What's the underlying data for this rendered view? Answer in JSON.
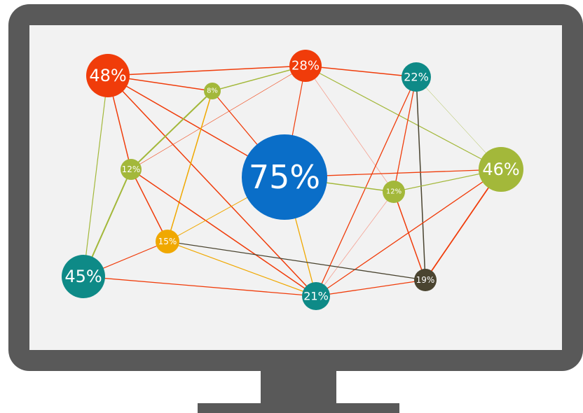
{
  "nodes": [
    {
      "label": "48%"
    },
    {
      "label": "28%"
    },
    {
      "label": "22%"
    },
    {
      "label": "8%"
    },
    {
      "label": "12%"
    },
    {
      "label": "75%"
    },
    {
      "label": "46%"
    },
    {
      "label": "12%"
    },
    {
      "label": "15%"
    },
    {
      "label": "45%"
    },
    {
      "label": "21%"
    },
    {
      "label": "19%"
    }
  ]
}
